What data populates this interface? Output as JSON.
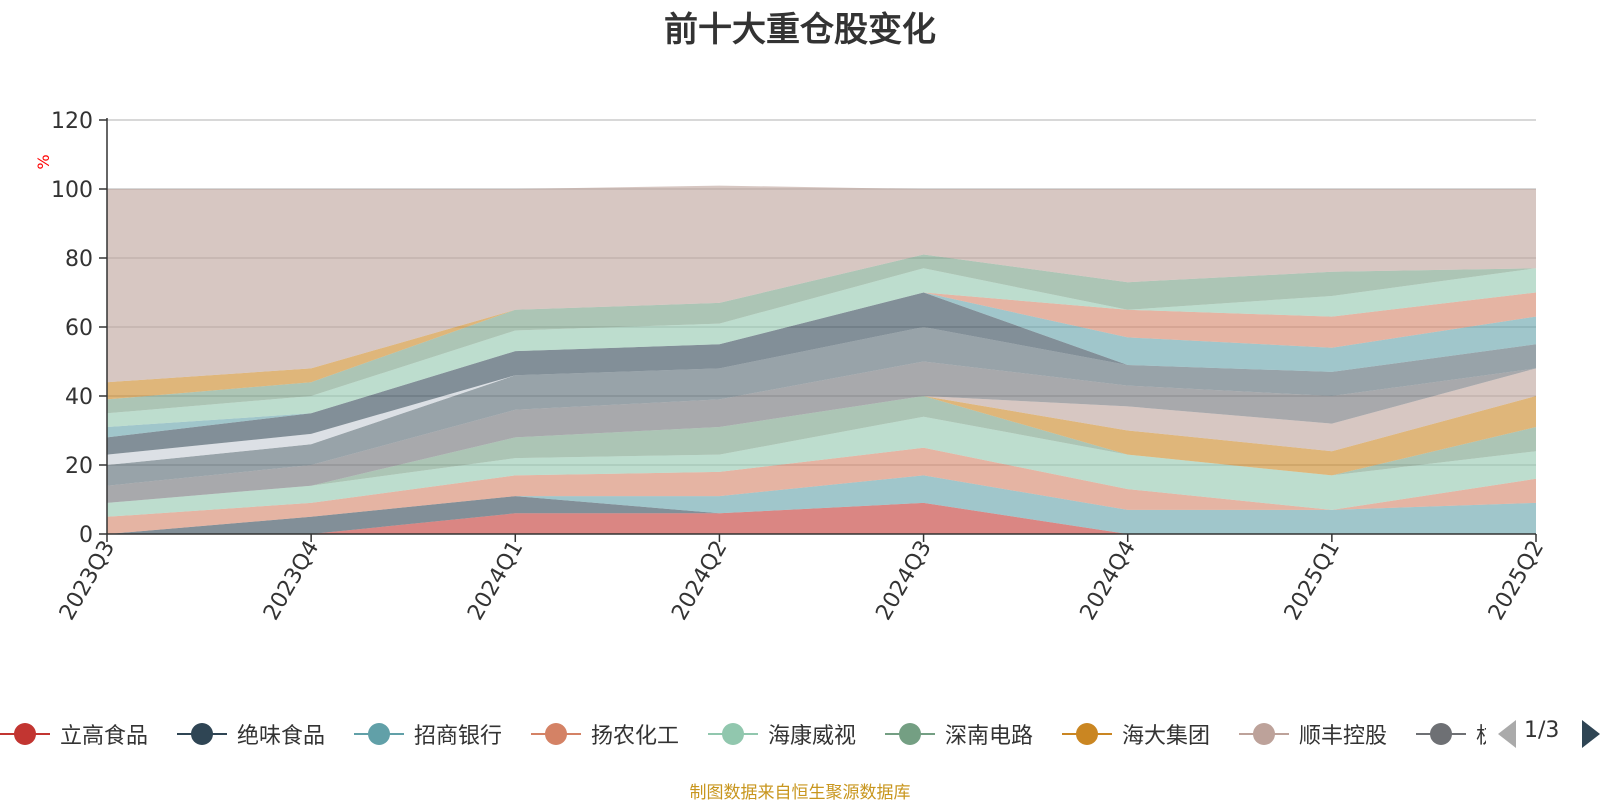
{
  "chart_data": {
    "type": "area",
    "stacked": true,
    "title": "前十大重仓股变化",
    "ylabel": "%",
    "xlabel": "",
    "ylim": [
      0,
      120
    ],
    "yticks": [
      0,
      20,
      40,
      60,
      80,
      100,
      120
    ],
    "grid": true,
    "legend_position": "bottom",
    "categories": [
      "2023Q3",
      "2023Q4",
      "2024Q1",
      "2024Q2",
      "2024Q3",
      "2024Q4",
      "2025Q1",
      "2025Q2"
    ],
    "series": [
      {
        "name": "立高食品",
        "color": "#c23531",
        "values": [
          0,
          0,
          6,
          6,
          9,
          0,
          0,
          0
        ]
      },
      {
        "name": "绝味食品",
        "color": "#2f4554",
        "values": [
          0,
          5,
          5,
          0,
          0,
          0,
          0,
          0
        ]
      },
      {
        "name": "招商银行",
        "color": "#61a0a8",
        "values": [
          0,
          0,
          0,
          5,
          8,
          7,
          7,
          9
        ]
      },
      {
        "name": "扬农化工",
        "color": "#d48265",
        "values": [
          5,
          4,
          6,
          7,
          8,
          6,
          0,
          7
        ]
      },
      {
        "name": "海康威视",
        "color": "#91c7ae",
        "values": [
          4,
          5,
          5,
          5,
          9,
          10,
          10,
          8
        ]
      },
      {
        "name": "深南电路",
        "color": "#749f83",
        "values": [
          0,
          0,
          6,
          8,
          6,
          0,
          0,
          7
        ]
      },
      {
        "name": "海大集团",
        "color": "#ca8622",
        "values": [
          0,
          0,
          0,
          0,
          0,
          7,
          7,
          9
        ]
      },
      {
        "name": "顺丰控股",
        "color": "#bda29a",
        "values": [
          0,
          0,
          0,
          0,
          0,
          7,
          8,
          8
        ]
      },
      {
        "name": "",
        "color": "#6e7074",
        "values": [
          5,
          6,
          8,
          8,
          10,
          6,
          8,
          0
        ]
      },
      {
        "name": "",
        "color": "#546570",
        "values": [
          6,
          6,
          10,
          9,
          10,
          6,
          7,
          7
        ]
      },
      {
        "name": "",
        "color": "#c4ccd3",
        "values": [
          3,
          3,
          0,
          0,
          0,
          0,
          0,
          0
        ]
      },
      {
        "name": "",
        "color": "#2f4554",
        "values": [
          5,
          6,
          7,
          7,
          10,
          0,
          0,
          0
        ]
      },
      {
        "name": "",
        "color": "#61a0a8",
        "values": [
          3,
          0,
          0,
          0,
          0,
          8,
          7,
          8
        ]
      },
      {
        "name": "",
        "color": "#d48265",
        "values": [
          0,
          0,
          0,
          0,
          0,
          8,
          9,
          7
        ]
      },
      {
        "name": "",
        "color": "#91c7ae",
        "values": [
          4,
          5,
          6,
          6,
          7,
          0,
          6,
          7
        ]
      },
      {
        "name": "",
        "color": "#749f83",
        "values": [
          4,
          4,
          6,
          6,
          4,
          8,
          7,
          0
        ]
      },
      {
        "name": "",
        "color": "#ca8622",
        "values": [
          5,
          4,
          0,
          0,
          0,
          0,
          0,
          0
        ]
      },
      {
        "name": "",
        "color": "#bda29a",
        "values": [
          56,
          52,
          35,
          34,
          19,
          27,
          24,
          23
        ]
      }
    ]
  },
  "legend": {
    "items": [
      {
        "label": "立高食品",
        "color": "#c23531"
      },
      {
        "label": "绝味食品",
        "color": "#2f4554"
      },
      {
        "label": "招商银行",
        "color": "#61a0a8"
      },
      {
        "label": "扬农化工",
        "color": "#d48265"
      },
      {
        "label": "海康威视",
        "color": "#91c7ae"
      },
      {
        "label": "深南电路",
        "color": "#749f83"
      },
      {
        "label": "海大集团",
        "color": "#ca8622"
      },
      {
        "label": "顺丰控股",
        "color": "#bda29a"
      },
      {
        "label": "杭",
        "color": "#6e7074"
      }
    ],
    "page_text": "1/3"
  },
  "source_note": "制图数据来自恒生聚源数据库"
}
